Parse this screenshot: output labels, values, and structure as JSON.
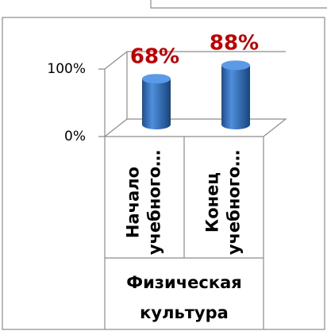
{
  "chart_data": {
    "type": "bar",
    "categories": [
      "Начало учебного…",
      "Конец учебного…"
    ],
    "group": "Физическая культура",
    "values": [
      68,
      88
    ],
    "value_labels": [
      "68%",
      "88%"
    ],
    "color": "#2f6db5",
    "ylim": [
      0,
      100
    ],
    "yticks": [
      {
        "value": 0,
        "label": "0%"
      },
      {
        "value": 100,
        "label": "100%"
      }
    ],
    "grid": true
  }
}
